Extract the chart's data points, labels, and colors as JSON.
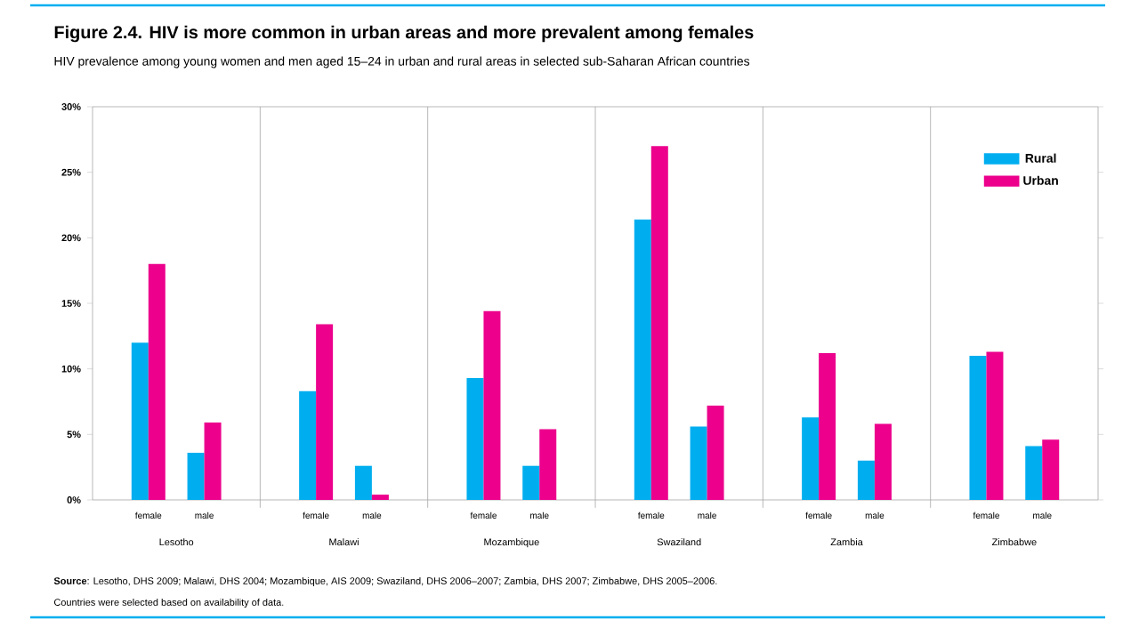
{
  "chart_data": {
    "type": "bar",
    "title": "Figure 2.4.  HIV is more common in urban areas and more prevalent among females",
    "subtitle": "HIV prevalence among young women and men aged 15–24 in urban and rural areas in selected sub-Saharan African countries",
    "categories": [
      "female",
      "male",
      "female",
      "male",
      "female",
      "male",
      "female",
      "male",
      "female",
      "male",
      "female",
      "male"
    ],
    "series": [
      {
        "name": "Rural",
        "color": "#00aeef",
        "values": [
          12.0,
          3.6,
          8.3,
          2.6,
          9.3,
          2.6,
          21.4,
          5.6,
          6.3,
          3.0,
          11.0,
          4.1
        ]
      },
      {
        "name": "Urban",
        "color": "#ec008c",
        "values": [
          18.0,
          5.9,
          13.4,
          0.4,
          14.4,
          5.4,
          27.0,
          7.2,
          11.2,
          5.8,
          11.3,
          4.6
        ]
      }
    ],
    "ylim": [
      0,
      30
    ],
    "yticks": [
      {
        "value": 0,
        "label": "0%"
      },
      {
        "value": 5,
        "label": "5%"
      },
      {
        "value": 10,
        "label": "10%"
      },
      {
        "value": 15,
        "label": "15%"
      },
      {
        "value": 20,
        "label": "20%"
      },
      {
        "value": 25,
        "label": "25%"
      },
      {
        "value": 30,
        "label": "30%"
      }
    ],
    "legend": "top right",
    "annotations": [
      "Lesotho",
      "Malawi",
      "Mozambique",
      "Swaziland",
      "Zambia",
      "Zimbabwe",
      "**Source**: Lesotho, DHS 2009; Malawi, DHS 2004; Mozambique, AIS 2009; Swaziland, DHS 2006–2007; Zambia, DHS 2007; Zimbabwe, DHS 2005–2006.",
      "Countries were selected based on availability of data."
    ]
  }
}
